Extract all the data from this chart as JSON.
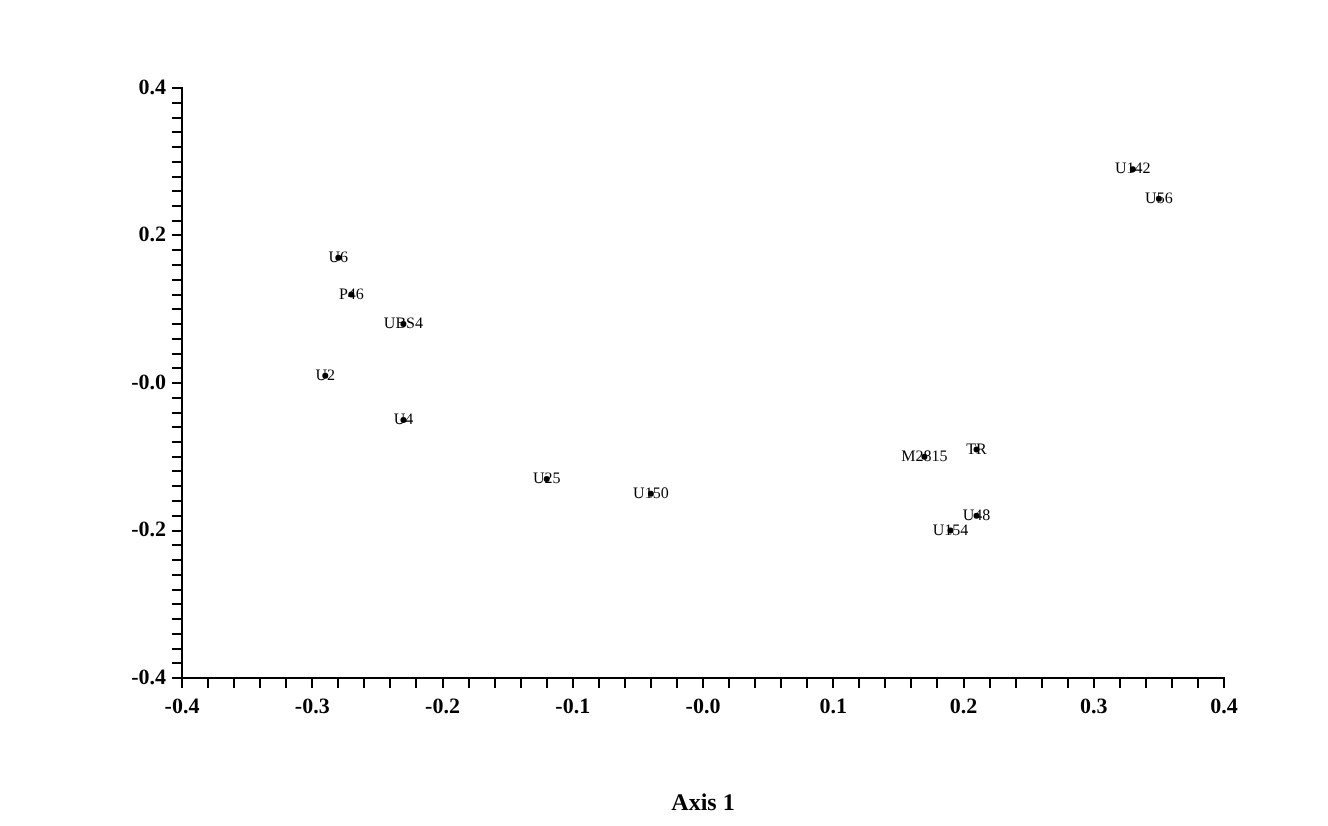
{
  "chart_data": {
    "type": "scatter",
    "xlabel": "Axis 1",
    "marker": "circle",
    "grid": false,
    "legend": false,
    "xlim": [
      -0.4,
      0.4
    ],
    "ylim": [
      -0.4,
      0.4
    ],
    "xticks": [
      -0.4,
      {
        "value": -0.38,
        "label": null
      },
      {
        "value": -0.36,
        "label": null
      },
      {
        "value": -0.34,
        "label": null
      },
      {
        "value": -0.32,
        "label": null
      },
      -0.3,
      {
        "value": -0.28,
        "label": null
      },
      {
        "value": -0.26,
        "label": null
      },
      {
        "value": -0.24,
        "label": null
      },
      {
        "value": -0.22,
        "label": null
      },
      -0.2,
      {
        "value": -0.18,
        "label": null
      },
      {
        "value": -0.16,
        "label": null
      },
      {
        "value": -0.14,
        "label": null
      },
      {
        "value": -0.12,
        "label": null
      },
      -0.1,
      {
        "value": -0.08,
        "label": null
      },
      {
        "value": -0.06,
        "label": null
      },
      {
        "value": -0.04,
        "label": null
      },
      {
        "value": -0.02,
        "label": null
      },
      {
        "value": 0,
        "label": "-0.0"
      },
      {
        "value": 0.02,
        "label": null
      },
      {
        "value": 0.04,
        "label": null
      },
      {
        "value": 0.06,
        "label": null
      },
      {
        "value": 0.08,
        "label": null
      },
      0.1,
      {
        "value": 0.12,
        "label": null
      },
      {
        "value": 0.14,
        "label": null
      },
      {
        "value": 0.16,
        "label": null
      },
      {
        "value": 0.18,
        "label": null
      },
      0.2,
      {
        "value": 0.22,
        "label": null
      },
      {
        "value": 0.24,
        "label": null
      },
      {
        "value": 0.26,
        "label": null
      },
      {
        "value": 0.28,
        "label": null
      },
      0.3,
      {
        "value": 0.32,
        "label": null
      },
      {
        "value": 0.34,
        "label": null
      },
      {
        "value": 0.36,
        "label": null
      },
      {
        "value": 0.38,
        "label": null
      },
      0.4
    ],
    "yticks": [
      -0.4,
      {
        "value": -0.38,
        "label": null
      },
      {
        "value": -0.36,
        "label": null
      },
      {
        "value": -0.34,
        "label": null
      },
      {
        "value": -0.32,
        "label": null
      },
      {
        "value": -0.3,
        "label": null
      },
      {
        "value": -0.28,
        "label": null
      },
      {
        "value": -0.26,
        "label": null
      },
      {
        "value": -0.24,
        "label": null
      },
      {
        "value": -0.22,
        "label": null
      },
      -0.2,
      {
        "value": -0.18,
        "label": null
      },
      {
        "value": -0.16,
        "label": null
      },
      {
        "value": -0.14,
        "label": null
      },
      {
        "value": -0.12,
        "label": null
      },
      {
        "value": -0.1,
        "label": null
      },
      {
        "value": -0.08,
        "label": null
      },
      {
        "value": -0.06,
        "label": null
      },
      {
        "value": -0.04,
        "label": null
      },
      {
        "value": -0.02,
        "label": null
      },
      {
        "value": 0,
        "label": "-0.0"
      },
      {
        "value": 0.02,
        "label": null
      },
      {
        "value": 0.04,
        "label": null
      },
      {
        "value": 0.06,
        "label": null
      },
      {
        "value": 0.08,
        "label": null
      },
      {
        "value": 0.1,
        "label": null
      },
      {
        "value": 0.12,
        "label": null
      },
      {
        "value": 0.14,
        "label": null
      },
      {
        "value": 0.16,
        "label": null
      },
      {
        "value": 0.18,
        "label": null
      },
      0.2,
      {
        "value": 0.22,
        "label": null
      },
      {
        "value": 0.24,
        "label": null
      },
      {
        "value": 0.26,
        "label": null
      },
      {
        "value": 0.28,
        "label": null
      },
      {
        "value": 0.3,
        "label": null
      },
      {
        "value": 0.32,
        "label": null
      },
      {
        "value": 0.34,
        "label": null
      },
      {
        "value": 0.36,
        "label": null
      },
      {
        "value": 0.38,
        "label": null
      },
      0.4
    ],
    "series": [
      {
        "color": "#000000",
        "x": [
          -0.28,
          -0.27,
          -0.23,
          -0.29,
          -0.23,
          -0.12,
          -0.04,
          0.33,
          0.35,
          0.17,
          0.21,
          0.19,
          0.21
        ],
        "values": [
          0.17,
          0.12,
          0.08,
          0.01,
          -0.05,
          -0.13,
          -0.15,
          0.29,
          0.25,
          -0.1,
          -0.09,
          -0.2,
          -0.18
        ],
        "value_labels": [
          "U6",
          "P46",
          "UBS4",
          "U2",
          "U4",
          "U25",
          "U150",
          "U142",
          "U56",
          "M2815",
          "TR",
          "U154",
          "U48"
        ]
      }
    ]
  }
}
